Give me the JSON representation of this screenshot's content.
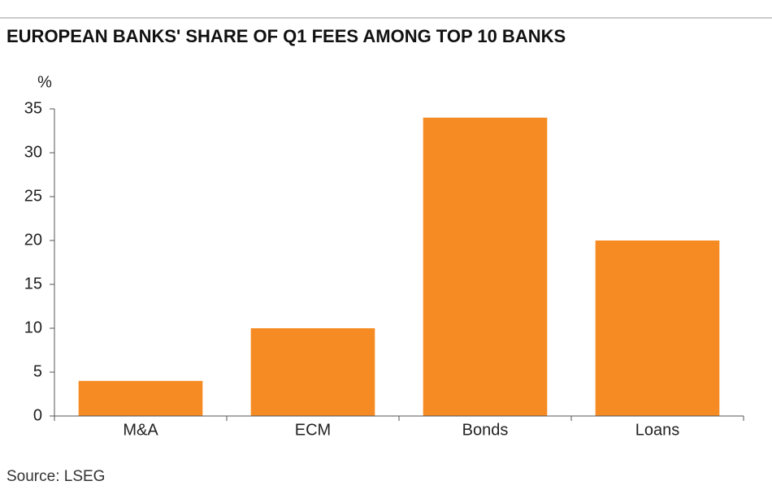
{
  "chart_data": {
    "type": "bar",
    "title": "EUROPEAN BANKS' SHARE OF Q1 FEES AMONG TOP 10 BANKS",
    "y_label": "%",
    "categories": [
      "M&A",
      "ECM",
      "Bonds",
      "Loans"
    ],
    "values": [
      4,
      10,
      34,
      20
    ],
    "color": "#f58b22",
    "ylim": [
      0,
      35
    ],
    "yticks": [
      0,
      5,
      10,
      15,
      20,
      25,
      30,
      35
    ],
    "grid": false,
    "source": "Source: LSEG"
  }
}
